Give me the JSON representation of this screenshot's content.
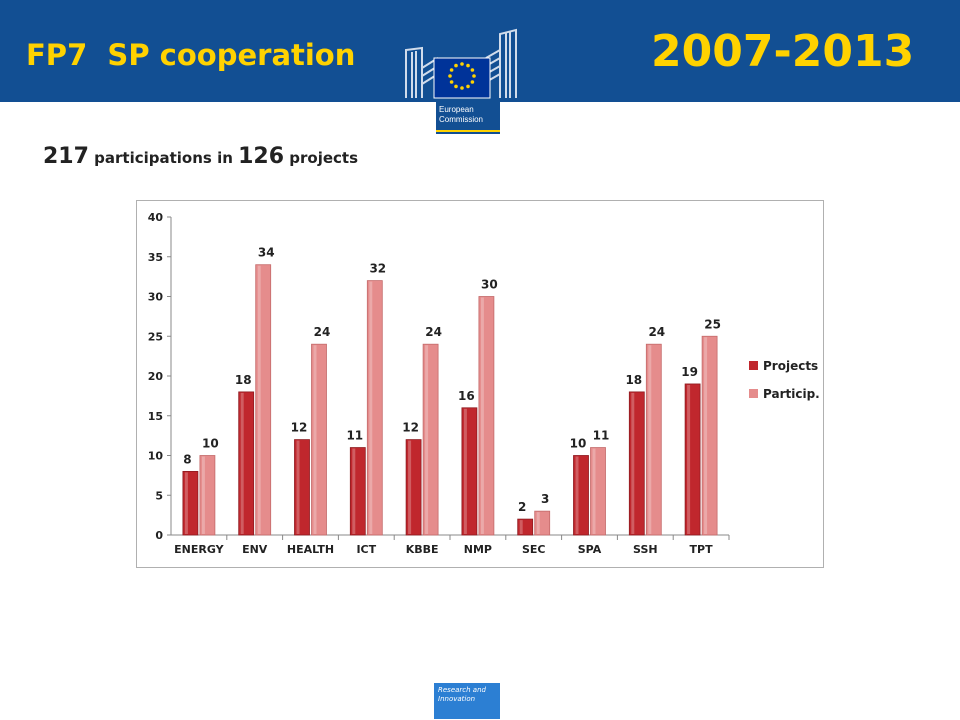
{
  "header": {
    "left_title": "FP7  SP cooperation",
    "right_title": "2007-2013",
    "logo_text_line1": "European",
    "logo_text_line2": "Commission"
  },
  "summary": {
    "participations": "217",
    "text1": " participations in ",
    "projects": "126",
    "text2": " projects"
  },
  "footer": {
    "line1": "Research and",
    "line2": "Innovation"
  },
  "chart_data": {
    "type": "bar",
    "categories": [
      "ENERGY",
      "ENV",
      "HEALTH",
      "ICT",
      "KBBE",
      "NMP",
      "SEC",
      "SPA",
      "SSH",
      "TPT"
    ],
    "series": [
      {
        "name": "Projects",
        "values": [
          8,
          18,
          12,
          11,
          12,
          16,
          2,
          10,
          18,
          19
        ],
        "color": "#c0272d"
      },
      {
        "name": "Particip.",
        "values": [
          10,
          34,
          24,
          32,
          24,
          30,
          3,
          11,
          24,
          25
        ],
        "color": "#e58c8c"
      }
    ],
    "ylim": [
      0,
      40
    ],
    "yticks": [
      0,
      5,
      10,
      15,
      20,
      25,
      30,
      35,
      40
    ],
    "grid": false,
    "legend": "right",
    "data_labels": true
  },
  "colors": {
    "header_bg": "#124f93",
    "title_yellow": "#ffd200"
  }
}
